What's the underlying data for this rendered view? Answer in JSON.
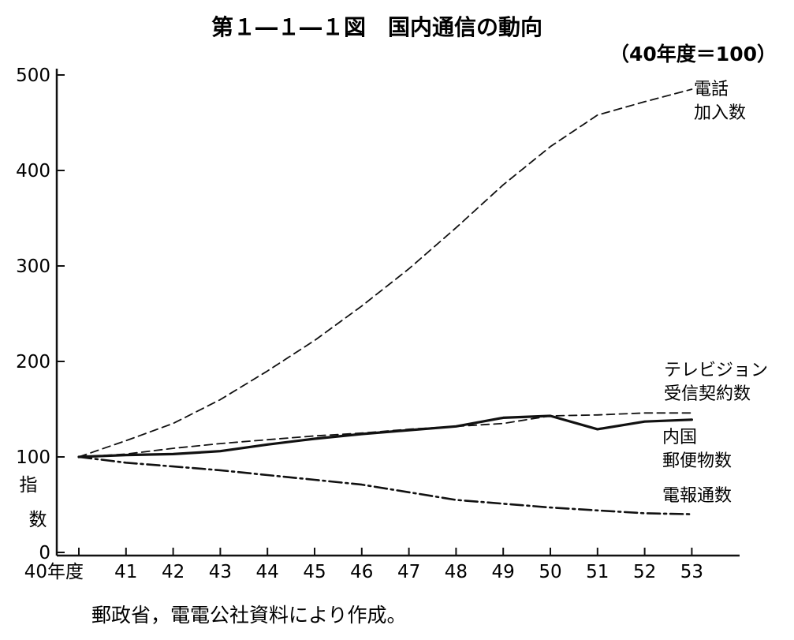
{
  "chart_data": {
    "type": "line",
    "title": "第１―１―１図　国内通信の動向",
    "unit_note": "（40年度＝100）",
    "ylabel": [
      "指",
      "数"
    ],
    "source": "郵政省，電電公社資料により作成。",
    "categories": [
      "40年度",
      "41",
      "42",
      "43",
      "44",
      "45",
      "46",
      "47",
      "48",
      "49",
      "50",
      "51",
      "52",
      "53"
    ],
    "yticks": [
      0,
      100,
      200,
      300,
      400,
      500
    ],
    "ylim": [
      0,
      500
    ],
    "grid": false,
    "series": [
      {
        "name": [
          "電話",
          "加入数"
        ],
        "style": "dashed",
        "values": [
          100,
          117,
          135,
          160,
          190,
          222,
          258,
          297,
          340,
          385,
          425,
          458,
          472,
          485
        ]
      },
      {
        "name": [
          "テレビジョン",
          "受信契約数"
        ],
        "style": "dashed",
        "values": [
          100,
          103,
          109,
          114,
          118,
          122,
          125,
          129,
          132,
          135,
          143,
          144,
          146,
          146
        ]
      },
      {
        "name": [
          "内国",
          "郵便物数"
        ],
        "style": "solid",
        "values": [
          100,
          102,
          103,
          106,
          113,
          119,
          124,
          128,
          132,
          141,
          143,
          129,
          137,
          139
        ]
      },
      {
        "name": [
          "電報通数"
        ],
        "style": "dashdot",
        "values": [
          100,
          94,
          90,
          86,
          81,
          76,
          71,
          63,
          55,
          51,
          47,
          44,
          41,
          40
        ]
      }
    ]
  }
}
